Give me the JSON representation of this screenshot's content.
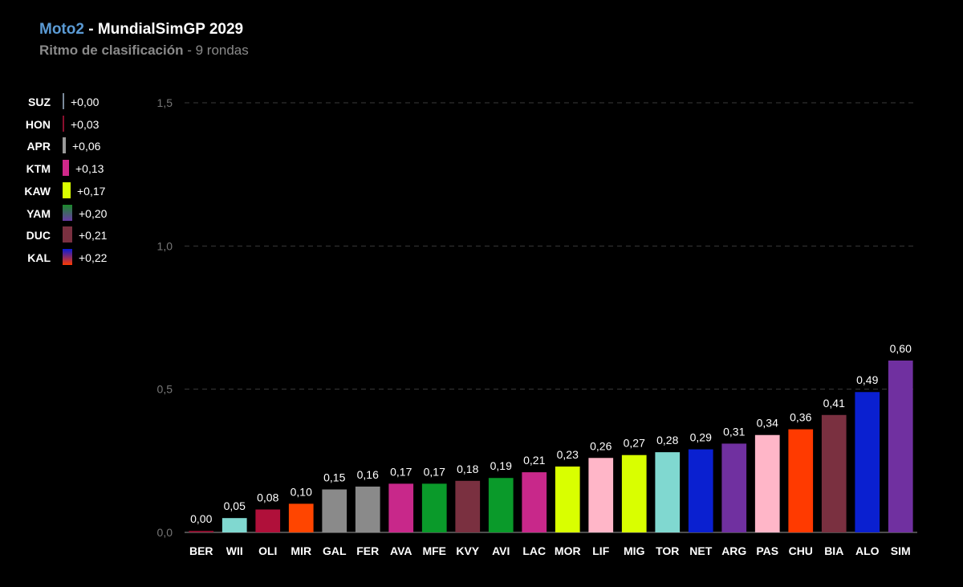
{
  "header": {
    "series_name": "Moto2",
    "title_rest": " - MundialSimGP 2029",
    "subtitle_main": "Ritmo de clasificación",
    "subtitle_rest": " - 9 rondas"
  },
  "legend": [
    {
      "code": "SUZ",
      "delta": "+0,00",
      "colors": [
        "#7a8a9a"
      ],
      "scale": 0.05
    },
    {
      "code": "HON",
      "delta": "+0,03",
      "colors": [
        "#8a0f2e"
      ],
      "scale": 0.15
    },
    {
      "code": "APR",
      "delta": "+0,06",
      "colors": [
        "#9a9a9a"
      ],
      "scale": 0.3
    },
    {
      "code": "KTM",
      "delta": "+0,13",
      "colors": [
        "#d0288a"
      ],
      "scale": 0.65
    },
    {
      "code": "KAW",
      "delta": "+0,17",
      "colors": [
        "#d9ff00"
      ],
      "scale": 0.85
    },
    {
      "code": "YAM",
      "delta": "+0,20",
      "colors": [
        "#1a8a2a",
        "#6a3aa8"
      ],
      "scale": 1.0
    },
    {
      "code": "DUC",
      "delta": "+0,21",
      "colors": [
        "#7a3040"
      ],
      "scale": 1.0
    },
    {
      "code": "KAL",
      "delta": "+0,22",
      "colors": [
        "#0a1ad8",
        "#ff3a00"
      ],
      "scale": 1.0
    }
  ],
  "chart_data": {
    "type": "bar",
    "title": "Moto2 - MundialSimGP 2029",
    "subtitle": "Ritmo de clasificación - 9 rondas",
    "ylim": [
      0,
      1.5
    ],
    "y_ticks": [
      "0,0",
      "0,5",
      "1,0",
      "1,5"
    ],
    "y_tick_values": [
      0,
      0.5,
      1.0,
      1.5
    ],
    "grid": true,
    "categories": [
      "BER",
      "WII",
      "OLI",
      "MIR",
      "GAL",
      "FER",
      "AVA",
      "MFE",
      "KVY",
      "AVI",
      "LAC",
      "MOR",
      "LIF",
      "MIG",
      "TOR",
      "NET",
      "ARG",
      "PAS",
      "CHU",
      "BIA",
      "ALO",
      "SIM"
    ],
    "values": [
      0.0,
      0.05,
      0.08,
      0.1,
      0.15,
      0.16,
      0.17,
      0.17,
      0.18,
      0.19,
      0.21,
      0.23,
      0.26,
      0.27,
      0.28,
      0.29,
      0.31,
      0.34,
      0.36,
      0.41,
      0.49,
      0.6
    ],
    "value_labels": [
      "0,00",
      "0,05",
      "0,08",
      "0,10",
      "0,15",
      "0,16",
      "0,17",
      "0,17",
      "0,18",
      "0,19",
      "0,21",
      "0,23",
      "0,26",
      "0,27",
      "0,28",
      "0,29",
      "0,31",
      "0,34",
      "0,36",
      "0,41",
      "0,49",
      "0,60"
    ],
    "bar_colors": [
      "#8a0f2e",
      "#80d8d0",
      "#b0103a",
      "#ff4500",
      "#8a8a8a",
      "#8a8a8a",
      "#c8288a",
      "#0a9a2a",
      "#7a3040",
      "#0a9a2a",
      "#c8288a",
      "#d9ff00",
      "#ffb6c8",
      "#d9ff00",
      "#80d8d0",
      "#0a20d0",
      "#7030a0",
      "#ffb6c8",
      "#ff3a00",
      "#7a3040",
      "#0a20d0",
      "#7030a0"
    ]
  }
}
